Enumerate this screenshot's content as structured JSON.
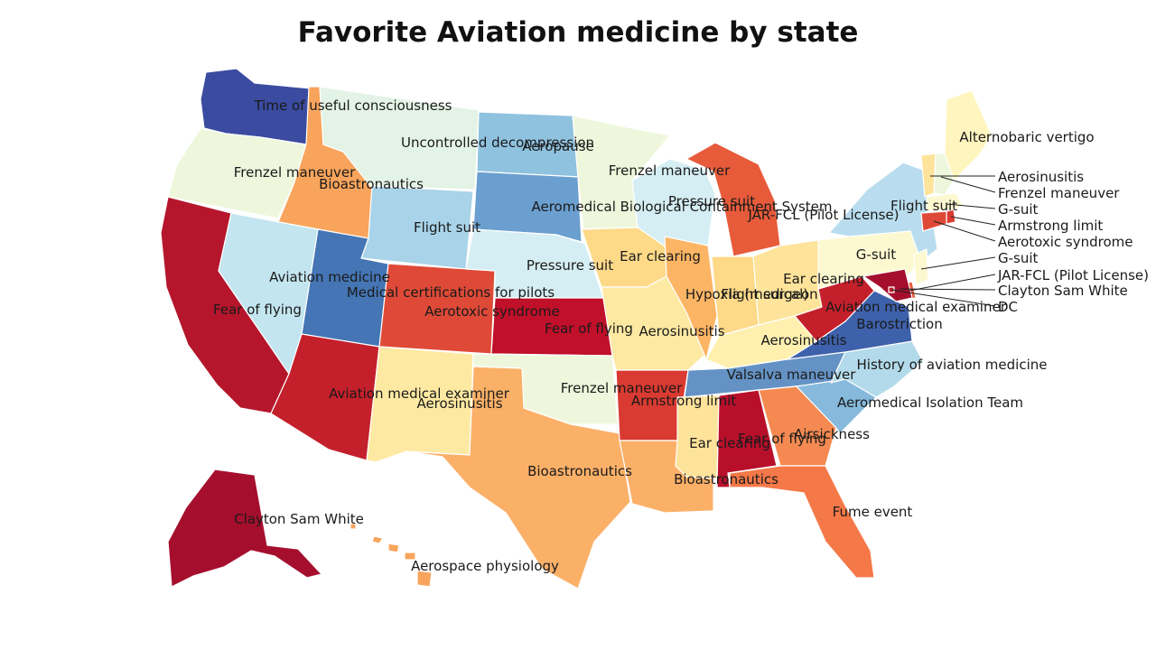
{
  "title": "Favorite Aviation medicine by state",
  "states": [
    {
      "code": "WA",
      "label": "Time of useful consciousness",
      "color": "#3a4ba0"
    },
    {
      "code": "OR",
      "label": "Frenzel maneuver",
      "color": "#eef7dc"
    },
    {
      "code": "CA",
      "label": "Fear of flying",
      "color": "#b5162c"
    },
    {
      "code": "ID",
      "label": "Bioastronautics",
      "color": "#f9a45c"
    },
    {
      "code": "NV",
      "label": "Aviation medicine",
      "color": "#c3e5f0"
    },
    {
      "code": "MT",
      "label": "Uncontrolled decompression",
      "color": "#e3f3e5"
    },
    {
      "code": "WY",
      "label": "Flight suit",
      "color": "#a8d3e8"
    },
    {
      "code": "UT",
      "label": "Medical certifications for pilots",
      "color": "#4575b4"
    },
    {
      "code": "AZ",
      "label": "Aviation medical examiner",
      "color": "#c4202b"
    },
    {
      "code": "CO",
      "label": "Aerotoxic syndrome",
      "color": "#de4a37"
    },
    {
      "code": "NM",
      "label": "Aerosinusitis",
      "color": "#fee9a2"
    },
    {
      "code": "ND",
      "label": "Aeropause",
      "color": "#8fc2df"
    },
    {
      "code": "SD",
      "label": "Aeromedical Biological Containment System",
      "color": "#6b9fcf"
    },
    {
      "code": "NE",
      "label": "Pressure suit",
      "color": "#d5eef3"
    },
    {
      "code": "KS",
      "label": "Fear of flying",
      "color": "#c0102a"
    },
    {
      "code": "OK",
      "label": "Frenzel maneuver",
      "color": "#eef7dc"
    },
    {
      "code": "TX",
      "label": "Bioastronautics",
      "color": "#fbb068"
    },
    {
      "code": "MN",
      "label": "Frenzel maneuver",
      "color": "#eef7dc"
    },
    {
      "code": "IA",
      "label": "Ear clearing",
      "color": "#fdd988"
    },
    {
      "code": "MO",
      "label": "Aerosinusitis",
      "color": "#fee9a2"
    },
    {
      "code": "AR",
      "label": "Armstrong limit",
      "color": "#d93a31"
    },
    {
      "code": "LA",
      "label": "Bioastronautics",
      "color": "#fbb068"
    },
    {
      "code": "WI",
      "label": "Pressure suit",
      "color": "#d5eef3"
    },
    {
      "code": "IL",
      "label": "Hypoxia (medical)",
      "color": "#fcb565"
    },
    {
      "code": "MI",
      "label": "JAR-FCL (Pilot License)",
      "color": "#e85b3a"
    },
    {
      "code": "IN",
      "label": "Flight surgeon",
      "color": "#fdd988"
    },
    {
      "code": "OH",
      "label": "Ear clearing",
      "color": "#fee39a"
    },
    {
      "code": "KY",
      "label": "Aerosinusitis",
      "color": "#fff0b0"
    },
    {
      "code": "TN",
      "label": "Valsalva maneuver",
      "color": "#6492c4"
    },
    {
      "code": "MS",
      "label": "Ear clearing",
      "color": "#fee39a"
    },
    {
      "code": "AL",
      "label": "Fear of flying",
      "color": "#b8102b"
    },
    {
      "code": "GA",
      "label": "Airsickness",
      "color": "#f48a52"
    },
    {
      "code": "FL",
      "label": "Fume event",
      "color": "#f47848"
    },
    {
      "code": "SC",
      "label": "Aeromedical Isolation Team",
      "color": "#86b9db"
    },
    {
      "code": "NC",
      "label": "History of aviation medicine",
      "color": "#b3daea"
    },
    {
      "code": "VA",
      "label": "Barostriction",
      "color": "#3e61ab"
    },
    {
      "code": "WV",
      "label": "Aviation medical examiner",
      "color": "#c4202b"
    },
    {
      "code": "PA",
      "label": "G-suit",
      "color": "#fcf8d0"
    },
    {
      "code": "NY",
      "label": "Flight suit",
      "color": "#b9ddee"
    },
    {
      "code": "ME",
      "label": "Alternobaric vertigo",
      "color": "#fff5be"
    },
    {
      "code": "AK",
      "label": "Clayton Sam White",
      "color": "#a50f2d"
    },
    {
      "code": "HI",
      "label": "Aerospace physiology",
      "color": "#f9a45c"
    }
  ],
  "callouts": [
    {
      "code": "VT",
      "label": "Aerosinusitis",
      "color": "#fee39a"
    },
    {
      "code": "NH",
      "label": "Frenzel maneuver",
      "color": "#eef7dc"
    },
    {
      "code": "MA",
      "label": "G-suit",
      "color": "#fcf8d0"
    },
    {
      "code": "RI",
      "label": "Armstrong limit",
      "color": "#d93a31"
    },
    {
      "code": "CT",
      "label": "Aerotoxic syndrome",
      "color": "#de4a37"
    },
    {
      "code": "NJ",
      "label": "G-suit",
      "color": "#fcf8d0"
    },
    {
      "code": "DE",
      "label": "JAR-FCL (Pilot License)",
      "color": "#e85b3a"
    },
    {
      "code": "MD",
      "label": "Clayton Sam White",
      "color": "#a50f2d"
    },
    {
      "code": "DC",
      "label": "DC",
      "color": "#c4202b"
    }
  ]
}
